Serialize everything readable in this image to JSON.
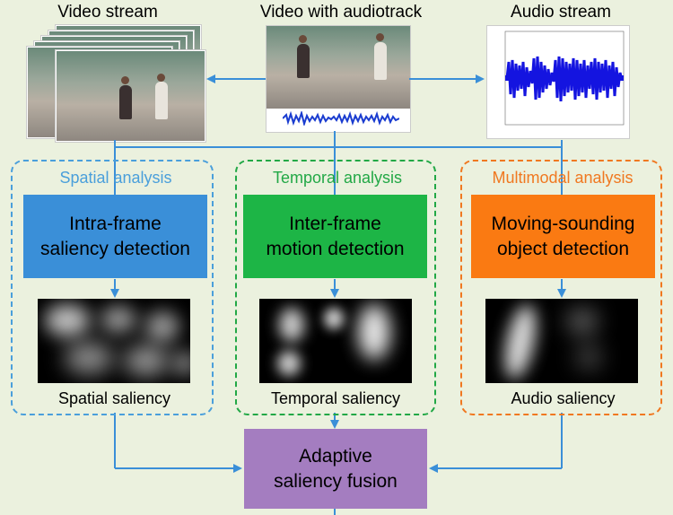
{
  "titles": {
    "video_stream": "Video stream",
    "video_audiotrack": "Video with audiotrack",
    "audio_stream": "Audio stream"
  },
  "spatial": {
    "label": "Spatial analysis",
    "block_line1": "Intra-frame",
    "block_line2": "saliency detection",
    "caption": "Spatial saliency",
    "color": "#4a9fdb",
    "block_color": "#3a8fd8"
  },
  "temporal": {
    "label": "Temporal analysis",
    "block_line1": "Inter-frame",
    "block_line2": "motion detection",
    "caption": "Temporal saliency",
    "color": "#22a846",
    "block_color": "#1db546"
  },
  "multimodal": {
    "label": "Multimodal analysis",
    "block_line1": "Moving-sounding",
    "block_line2": "object detection",
    "caption": "Audio saliency",
    "color": "#f07820",
    "block_color": "#fa7a12"
  },
  "fusion": {
    "line1": "Adaptive",
    "line2": "saliency fusion",
    "color": "#a47dc0"
  },
  "arrow_color": "#3a8fd8"
}
